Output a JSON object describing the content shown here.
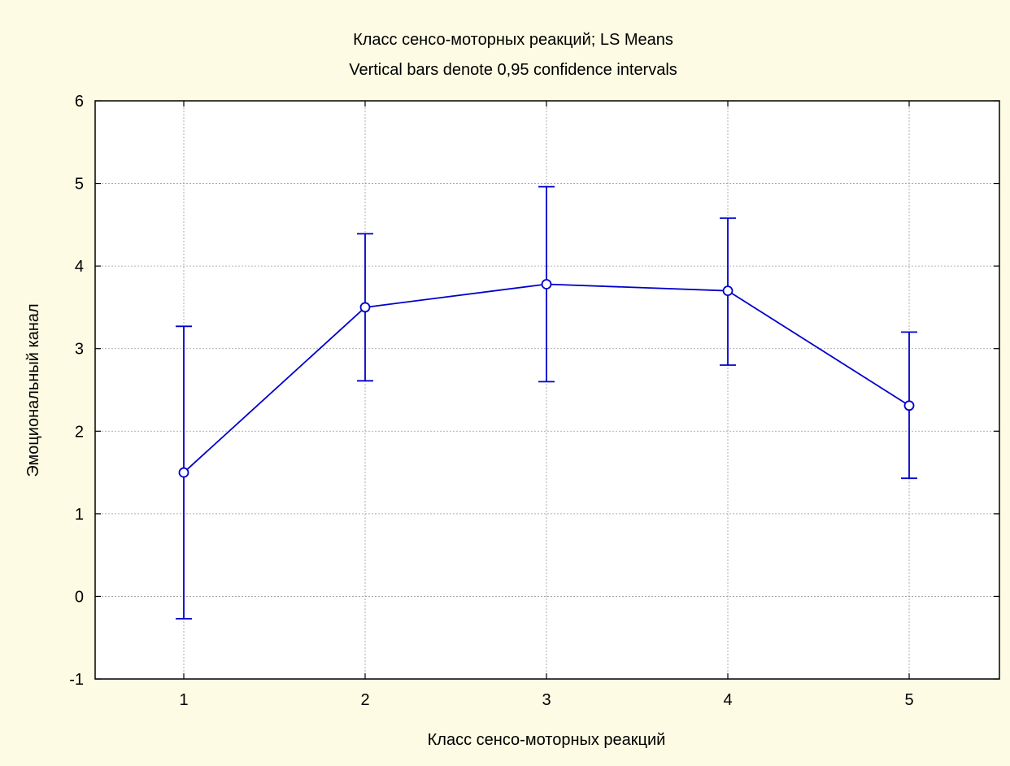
{
  "chart_data": {
    "type": "line",
    "title": "Класс сенсо-моторных реакций; LS Means",
    "subtitle": "Vertical bars denote 0,95 confidence intervals",
    "xlabel": "Класс сенсо-моторных реакций",
    "ylabel": "Эмоциональный канал",
    "x_categories": [
      "1",
      "2",
      "3",
      "4",
      "5"
    ],
    "y_ticks": [
      "-1",
      "0",
      "1",
      "2",
      "3",
      "4",
      "5",
      "6"
    ],
    "ylim": [
      -1,
      6
    ],
    "grid": true,
    "series": [
      {
        "color": "#0000cc",
        "means": [
          1.5,
          3.5,
          3.78,
          3.7,
          2.31
        ],
        "ci_lower": [
          -0.27,
          2.61,
          2.6,
          2.8,
          1.43
        ],
        "ci_upper": [
          3.27,
          4.39,
          4.96,
          4.58,
          3.2
        ]
      }
    ]
  }
}
